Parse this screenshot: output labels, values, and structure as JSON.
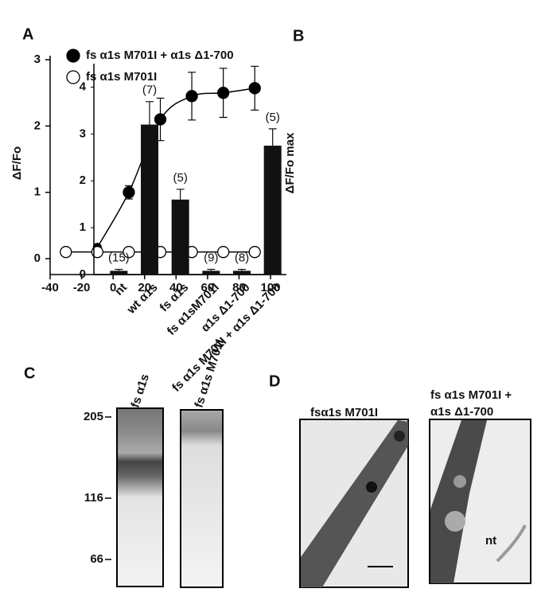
{
  "chart_data": [
    {
      "type": "line",
      "panel": "A",
      "ylabel": "ΔF/Fo",
      "xlim": [
        -40,
        100
      ],
      "xticks": [
        -40,
        -20,
        0,
        20,
        40,
        60,
        80,
        100
      ],
      "ylim": [
        -0.24,
        3.06
      ],
      "yticks": [
        0,
        1,
        2,
        3
      ],
      "series": [
        {
          "name": "fs α1s M701I + α1s Δ1-700",
          "color": "#000000",
          "marker": "filled",
          "smooth": true,
          "x": [
            -10,
            10,
            30,
            50,
            70,
            90
          ],
          "values": [
            0.17,
            1.0,
            2.1,
            2.45,
            2.5,
            2.57
          ],
          "errors": [
            0.03,
            0.1,
            0.32,
            0.36,
            0.37,
            0.33
          ]
        },
        {
          "name": "fs α1s M701I",
          "color": "#000000",
          "marker": "open",
          "smooth": false,
          "x": [
            -30,
            -10,
            10,
            30,
            50,
            70,
            90
          ],
          "values": [
            0.1,
            0.1,
            0.1,
            0.1,
            0.1,
            0.1,
            0.1
          ]
        }
      ]
    },
    {
      "type": "bar",
      "panel": "B",
      "ylabel": "ΔF/Fo max",
      "color": "#111111",
      "categories": [
        "nt",
        "wt α1s",
        "fs α1s",
        "fs α1sM701I",
        "α1s Δ1-700",
        "fs α1s M701I + α1s Δ1-700"
      ],
      "values": [
        0.08,
        3.2,
        1.6,
        0.08,
        0.08,
        2.75
      ],
      "errors": [
        0.03,
        0.49,
        0.22,
        0.03,
        0.03,
        0.36
      ],
      "n_labels": [
        "(15)",
        "(7)",
        "(5)",
        "(9)",
        "(8)",
        "(5)"
      ],
      "ylim": [
        0,
        4.5
      ],
      "yticks": [
        0,
        1,
        2,
        3,
        4
      ]
    }
  ],
  "blot": {
    "panel": "C",
    "lanes": [
      "fs α1s",
      "fs α1s M701I"
    ],
    "markers": [
      "205",
      "116",
      "66"
    ]
  },
  "images": {
    "panel": "D",
    "captions": [
      "fsα1s M701I",
      "fs α1s M701I +",
      "α1s Δ1-700"
    ],
    "note": "nt"
  }
}
